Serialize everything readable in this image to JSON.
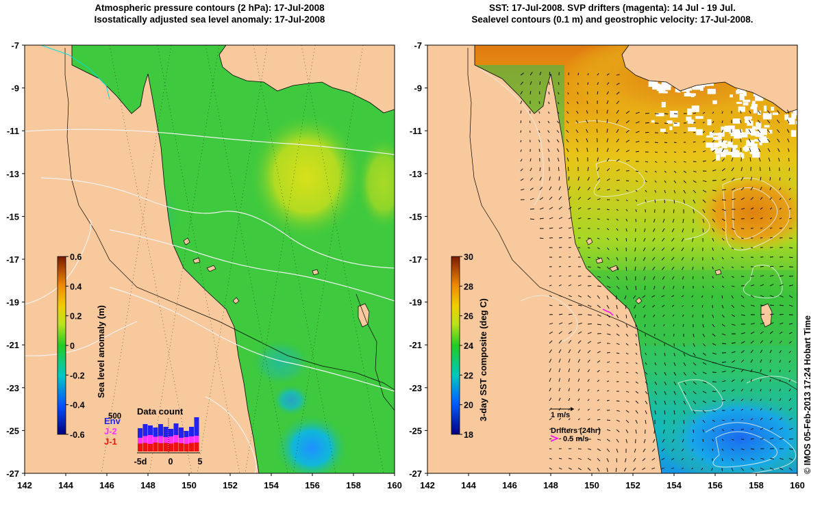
{
  "left_panel": {
    "title_line1": "Atmospheric pressure contours (2 hPa): 17-Jul-2008",
    "title_line2": "Isostatically adjusted sea level anomaly: 17-Jul-2008",
    "colorbar": {
      "label": "Sea level anomaly (m)",
      "ticks": [
        "0.6",
        "0.4",
        "0.2",
        "0",
        "-0.2",
        "-0.4",
        "-0.6"
      ]
    },
    "data_count": {
      "title": "Data count",
      "max_label": "500",
      "x_ticks": [
        "-5d",
        "0",
        "5"
      ],
      "legend": [
        {
          "label": "Env",
          "color": "#2222ee"
        },
        {
          "label": "J-2",
          "color": "#ff33ff"
        },
        {
          "label": "J-1",
          "color": "#ee1111"
        }
      ],
      "bars": [
        {
          "total": 0.68,
          "j2": 0.4,
          "j1": 0.23
        },
        {
          "total": 0.8,
          "j2": 0.45,
          "j1": 0.25
        },
        {
          "total": 0.76,
          "j2": 0.48,
          "j1": 0.22
        },
        {
          "total": 0.7,
          "j2": 0.43,
          "j1": 0.26
        },
        {
          "total": 0.8,
          "j2": 0.45,
          "j1": 0.24
        },
        {
          "total": 0.72,
          "j2": 0.42,
          "j1": 0.25
        },
        {
          "total": 0.66,
          "j2": 0.44,
          "j1": 0.23
        },
        {
          "total": 0.82,
          "j2": 0.48,
          "j1": 0.26
        },
        {
          "total": 0.7,
          "j2": 0.4,
          "j1": 0.24
        },
        {
          "total": 0.6,
          "j2": 0.42,
          "j1": 0.22
        },
        {
          "total": 0.72,
          "j2": 0.44,
          "j1": 0.25
        },
        {
          "total": 1.0,
          "j2": 0.46,
          "j1": 0.26
        }
      ]
    }
  },
  "right_panel": {
    "title_line1": "SST: 17-Jul-2008. SVP drifters (magenta): 14 Jul - 19 Jul.",
    "title_line2": "Sealevel contours (0.1 m) and geostrophic velocity: 17-Jul-2008.",
    "colorbar": {
      "label": "3-day SST composite (deg C)",
      "ticks": [
        "30",
        "28",
        "26",
        "24",
        "22",
        "20",
        "18"
      ]
    },
    "velocity_key": "1 m/s",
    "drifter_key_title": "Drifters (24hr)",
    "drifter_key_value": "0.5 m/s"
  },
  "axes": {
    "lat_ticks": [
      "-7",
      "-9",
      "-11",
      "-13",
      "-15",
      "-17",
      "-19",
      "-21",
      "-23",
      "-25",
      "-27"
    ],
    "lon_ticks": [
      "142",
      "144",
      "146",
      "148",
      "150",
      "152",
      "154",
      "156",
      "158",
      "160"
    ]
  },
  "credit": "© IMOS 05-Feb-2013 17:24 Hobart Time",
  "colors": {
    "land": "#f8c99c",
    "sla_background": "#3ec93e",
    "sst_background": "#3cc43c"
  }
}
